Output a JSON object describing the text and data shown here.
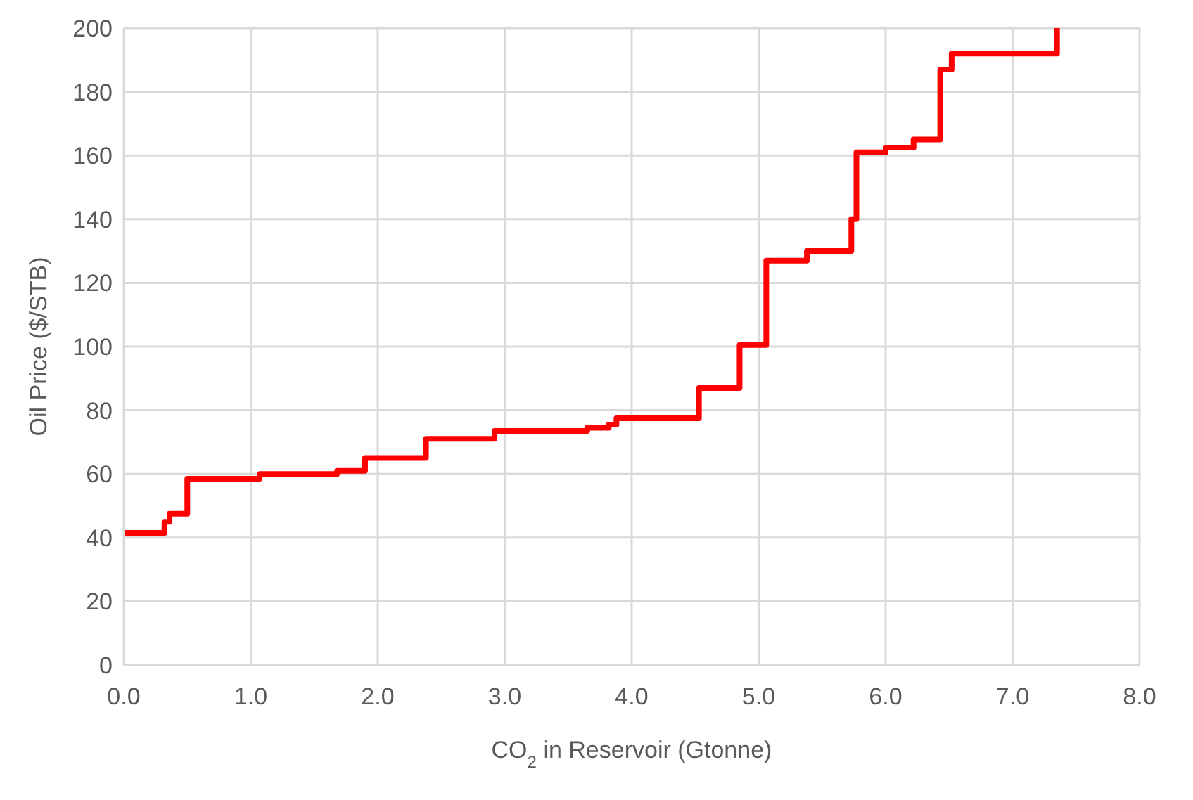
{
  "chart_data": {
    "type": "step",
    "xlabel": "CO$_{2}$ in Reservoir (Gtonne)",
    "ylabel": "Oil Price ($/STB)",
    "x": [
      0,
      0.32,
      0.36,
      0.5,
      1.07,
      1.68,
      1.9,
      2.38,
      2.92,
      3.65,
      3.82,
      3.88,
      4.53,
      4.85,
      5.06,
      5.38,
      5.73,
      5.77,
      6.0,
      6.22,
      6.43,
      6.52,
      7.35
    ],
    "series": [
      {
        "color": "#ff0000",
        "values": [
          41.5,
          45,
          47.5,
          58.5,
          60,
          61,
          65,
          71,
          73.5,
          74.5,
          75.5,
          77.5,
          87,
          100.5,
          127,
          130,
          140,
          161,
          162.5,
          165,
          187,
          192,
          200
        ]
      }
    ],
    "xlim": [
      0,
      8
    ],
    "xticks": [
      {
        "value": 0,
        "label": "0.0"
      },
      {
        "value": 1,
        "label": "1.0"
      },
      {
        "value": 2,
        "label": "2.0"
      },
      {
        "value": 3,
        "label": "3.0"
      },
      {
        "value": 4,
        "label": "4.0"
      },
      {
        "value": 5,
        "label": "5.0"
      },
      {
        "value": 6,
        "label": "6.0"
      },
      {
        "value": 7,
        "label": "7.0"
      },
      {
        "value": 8,
        "label": "8.0"
      }
    ],
    "ylim": [
      0,
      200
    ],
    "yticks": [
      0,
      20,
      40,
      60,
      80,
      100,
      120,
      140,
      160,
      180,
      200
    ],
    "grid": true,
    "legend": false,
    "marker": "none",
    "line_style": "solid"
  }
}
